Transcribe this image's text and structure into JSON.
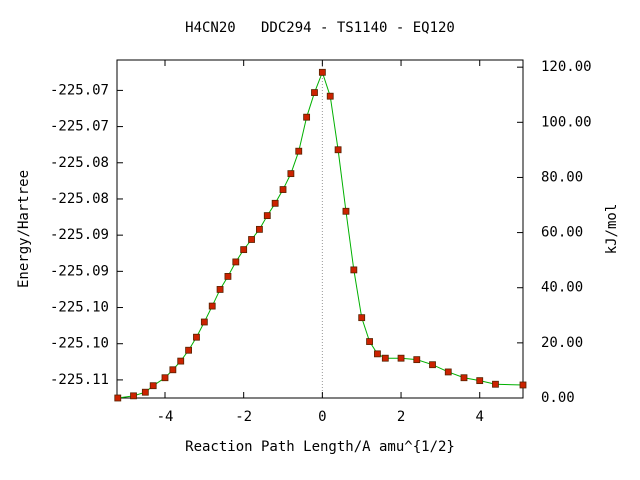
{
  "chart_data": {
    "type": "line",
    "title": "H4CN20   DDC294 - TS1140 - EQ120",
    "x_label": "Reaction Path Length/A amu^{1/2}",
    "y_label": "Energy/Hartree",
    "y2_label": "kJ/mol",
    "xlim": [
      -5.22,
      5.1
    ],
    "xticks": [
      -4,
      -2,
      0,
      2,
      4
    ],
    "ylim": [
      -225.1125,
      -225.0658
    ],
    "yticks": [
      {
        "value": -225.11,
        "label": "-225.11"
      },
      {
        "value": -225.105,
        "label": "-225.10"
      },
      {
        "value": -225.1,
        "label": "-225.10"
      },
      {
        "value": -225.095,
        "label": "-225.09"
      },
      {
        "value": -225.09,
        "label": "-225.09"
      },
      {
        "value": -225.085,
        "label": "-225.08"
      },
      {
        "value": -225.08,
        "label": "-225.08"
      },
      {
        "value": -225.075,
        "label": "-225.07"
      },
      {
        "value": -225.07,
        "label": "-225.07"
      }
    ],
    "y2lim": [
      0,
      122.6
    ],
    "y2ticks": [
      {
        "value": 0,
        "label": "0.00"
      },
      {
        "value": 20,
        "label": "20.00"
      },
      {
        "value": 40,
        "label": "40.00"
      },
      {
        "value": 60,
        "label": "60.00"
      },
      {
        "value": 80,
        "label": "80.00"
      },
      {
        "value": 100,
        "label": "100.00"
      },
      {
        "value": 120,
        "label": "120.00"
      }
    ],
    "line_color": "#00b000",
    "marker_color": "#cc2200",
    "x": [
      -5.2,
      -4.8,
      -4.5,
      -4.3,
      -4.0,
      -3.8,
      -3.6,
      -3.4,
      -3.2,
      -3.0,
      -2.8,
      -2.6,
      -2.4,
      -2.2,
      -2.0,
      -1.8,
      -1.6,
      -1.4,
      -1.2,
      -1.0,
      -0.8,
      -0.6,
      -0.4,
      -0.2,
      0,
      0.2,
      0.4,
      0.6,
      0.8,
      1.0,
      1.2,
      1.4,
      1.6,
      2.0,
      2.4,
      2.8,
      3.2,
      3.6,
      4.0,
      4.4,
      5.1
    ],
    "values": [
      -225.1125,
      -225.1122,
      -225.1117,
      -225.1108,
      -225.1097,
      -225.1086,
      -225.1074,
      -225.1059,
      -225.1041,
      -225.102,
      -225.0998,
      -225.0975,
      -225.0957,
      -225.0937,
      -225.092,
      -225.0906,
      -225.0892,
      -225.0873,
      -225.0856,
      -225.0837,
      -225.0815,
      -225.0784,
      -225.0737,
      -225.0703,
      -225.0675,
      -225.0708,
      -225.0782,
      -225.0867,
      -225.0948,
      -225.1014,
      -225.1047,
      -225.1064,
      -225.107,
      -225.107,
      -225.1072,
      -225.1079,
      -225.1089,
      -225.1097,
      -225.1101,
      -225.1106,
      -225.1107
    ]
  }
}
